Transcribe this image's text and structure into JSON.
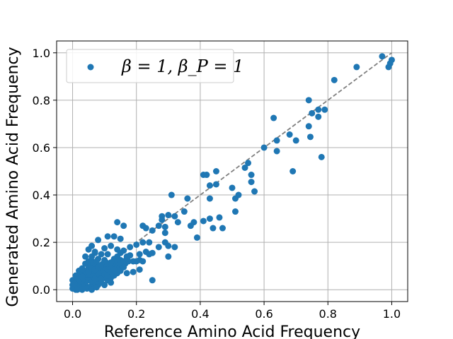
{
  "chart_data": {
    "type": "scatter",
    "title": "",
    "xlabel": "Reference Amino Acid Frequency",
    "ylabel": "Generated Amino Acid Frequency",
    "xlim": [
      -0.05,
      1.05
    ],
    "ylim": [
      -0.05,
      1.05
    ],
    "xticks": [
      "0.0",
      "0.2",
      "0.4",
      "0.6",
      "0.8",
      "1.0"
    ],
    "yticks": [
      "0.0",
      "0.2",
      "0.4",
      "0.6",
      "0.8",
      "1.0"
    ],
    "grid": true,
    "legend": {
      "placement": "upper-left",
      "label": "β = 1, β_P = 1"
    },
    "reference_line": {
      "style": "dashed",
      "color": "#808080",
      "from": [
        0,
        0
      ],
      "to": [
        1,
        1
      ]
    },
    "color": "#1f77b4",
    "series": [
      {
        "name": "β = 1, β_P = 1",
        "points": [
          [
            0.97,
            0.985
          ],
          [
            1.0,
            0.97
          ],
          [
            0.995,
            0.955
          ],
          [
            0.99,
            0.94
          ],
          [
            0.89,
            0.94
          ],
          [
            0.82,
            0.885
          ],
          [
            0.74,
            0.8
          ],
          [
            0.79,
            0.76
          ],
          [
            0.77,
            0.76
          ],
          [
            0.75,
            0.745
          ],
          [
            0.77,
            0.73
          ],
          [
            0.74,
            0.69
          ],
          [
            0.745,
            0.645
          ],
          [
            0.78,
            0.56
          ],
          [
            0.63,
            0.725
          ],
          [
            0.68,
            0.655
          ],
          [
            0.64,
            0.63
          ],
          [
            0.7,
            0.63
          ],
          [
            0.6,
            0.6
          ],
          [
            0.64,
            0.585
          ],
          [
            0.69,
            0.5
          ],
          [
            0.55,
            0.535
          ],
          [
            0.56,
            0.485
          ],
          [
            0.54,
            0.515
          ],
          [
            0.56,
            0.455
          ],
          [
            0.57,
            0.415
          ],
          [
            0.52,
            0.4
          ],
          [
            0.5,
            0.43
          ],
          [
            0.51,
            0.385
          ],
          [
            0.51,
            0.33
          ],
          [
            0.45,
            0.5
          ],
          [
            0.43,
            0.44
          ],
          [
            0.45,
            0.445
          ],
          [
            0.42,
            0.485
          ],
          [
            0.41,
            0.485
          ],
          [
            0.43,
            0.385
          ],
          [
            0.46,
            0.305
          ],
          [
            0.43,
            0.3
          ],
          [
            0.44,
            0.26
          ],
          [
            0.47,
            0.26
          ],
          [
            0.41,
            0.29
          ],
          [
            0.38,
            0.285
          ],
          [
            0.37,
            0.27
          ],
          [
            0.39,
            0.22
          ],
          [
            0.31,
            0.4
          ],
          [
            0.36,
            0.385
          ],
          [
            0.35,
            0.33
          ],
          [
            0.32,
            0.31
          ],
          [
            0.3,
            0.315
          ],
          [
            0.33,
            0.285
          ],
          [
            0.28,
            0.31
          ],
          [
            0.28,
            0.295
          ],
          [
            0.29,
            0.265
          ],
          [
            0.27,
            0.27
          ],
          [
            0.29,
            0.24
          ],
          [
            0.29,
            0.2
          ],
          [
            0.3,
            0.185
          ],
          [
            0.27,
            0.18
          ],
          [
            0.32,
            0.18
          ],
          [
            0.25,
            0.25
          ],
          [
            0.24,
            0.2
          ],
          [
            0.23,
            0.16
          ],
          [
            0.24,
            0.15
          ],
          [
            0.25,
            0.155
          ],
          [
            0.3,
            0.14
          ],
          [
            0.22,
            0.12
          ],
          [
            0.22,
            0.27
          ],
          [
            0.23,
            0.26
          ],
          [
            0.22,
            0.2
          ],
          [
            0.21,
            0.15
          ],
          [
            0.21,
            0.125
          ],
          [
            0.2,
            0.12
          ],
          [
            0.21,
            0.085
          ],
          [
            0.18,
            0.145
          ],
          [
            0.19,
            0.12
          ],
          [
            0.16,
            0.165
          ],
          [
            0.15,
            0.155
          ],
          [
            0.14,
            0.14
          ],
          [
            0.17,
            0.14
          ],
          [
            0.15,
            0.125
          ],
          [
            0.13,
            0.125
          ],
          [
            0.19,
            0.075
          ],
          [
            0.17,
            0.07
          ],
          [
            0.25,
            0.04
          ],
          [
            0.14,
            0.285
          ],
          [
            0.16,
            0.27
          ],
          [
            0.13,
            0.225
          ],
          [
            0.11,
            0.225
          ],
          [
            0.15,
            0.215
          ],
          [
            0.14,
            0.17
          ],
          [
            0.12,
            0.185
          ],
          [
            0.1,
            0.175
          ],
          [
            0.09,
            0.15
          ],
          [
            0.11,
            0.15
          ],
          [
            0.13,
            0.1
          ],
          [
            0.14,
            0.095
          ],
          [
            0.12,
            0.09
          ],
          [
            0.1,
            0.125
          ],
          [
            0.1,
            0.1
          ],
          [
            0.11,
            0.07
          ],
          [
            0.12,
            0.06
          ],
          [
            0.13,
            0.06
          ],
          [
            0.1,
            0.05
          ],
          [
            0.12,
            0.03
          ],
          [
            0.08,
            0.035
          ],
          [
            0.09,
            0.09
          ],
          [
            0.07,
            0.1
          ],
          [
            0.05,
            0.09
          ],
          [
            0.06,
            0.12
          ],
          [
            0.04,
            0.14
          ],
          [
            0.05,
            0.17
          ],
          [
            0.06,
            0.185
          ],
          [
            0.07,
            0.16
          ],
          [
            0.08,
            0.13
          ],
          [
            0.08,
            0.21
          ],
          [
            0.07,
            0.155
          ],
          [
            0.06,
            0.14
          ],
          [
            0.05,
            0.12
          ],
          [
            0.04,
            0.11
          ],
          [
            0.03,
            0.09
          ],
          [
            0.02,
            0.08
          ],
          [
            0.01,
            0.06
          ],
          [
            0.0,
            0.04
          ],
          [
            0.01,
            0.03
          ],
          [
            0.0,
            0.02
          ],
          [
            0.005,
            0.01
          ],
          [
            0.01,
            0.0
          ],
          [
            0.02,
            0.005
          ],
          [
            0.03,
            0.01
          ],
          [
            0.04,
            0.02
          ],
          [
            0.05,
            0.01
          ],
          [
            0.06,
            0.02
          ],
          [
            0.07,
            0.03
          ],
          [
            0.08,
            0.05
          ],
          [
            0.09,
            0.06
          ],
          [
            0.06,
            0.07
          ],
          [
            0.05,
            0.06
          ],
          [
            0.04,
            0.05
          ],
          [
            0.03,
            0.04
          ],
          [
            0.02,
            0.03
          ],
          [
            0.015,
            0.05
          ],
          [
            0.025,
            0.07
          ],
          [
            0.035,
            0.075
          ],
          [
            0.045,
            0.08
          ],
          [
            0.055,
            0.1
          ],
          [
            0.065,
            0.11
          ],
          [
            0.075,
            0.12
          ],
          [
            0.085,
            0.08
          ],
          [
            0.095,
            0.07
          ],
          [
            0.105,
            0.085
          ],
          [
            0.115,
            0.095
          ],
          [
            0.125,
            0.075
          ],
          [
            0.135,
            0.08
          ],
          [
            0.145,
            0.09
          ],
          [
            0.155,
            0.1
          ],
          [
            0.165,
            0.11
          ],
          [
            0.175,
            0.12
          ],
          [
            0.06,
            0.05
          ],
          [
            0.07,
            0.06
          ],
          [
            0.08,
            0.07
          ],
          [
            0.09,
            0.03
          ],
          [
            0.1,
            0.02
          ],
          [
            0.11,
            0.04
          ],
          [
            0.12,
            0.05
          ],
          [
            0.04,
            0.03
          ],
          [
            0.03,
            0.02
          ],
          [
            0.02,
            0.015
          ],
          [
            0.01,
            0.015
          ],
          [
            0.015,
            0.025
          ],
          [
            0.025,
            0.035
          ],
          [
            0.035,
            0.045
          ],
          [
            0.045,
            0.055
          ],
          [
            0.055,
            0.065
          ],
          [
            0.065,
            0.08
          ],
          [
            0.075,
            0.09
          ],
          [
            0.085,
            0.1
          ],
          [
            0.095,
            0.11
          ],
          [
            0.105,
            0.115
          ],
          [
            0.03,
            0.06
          ],
          [
            0.04,
            0.065
          ],
          [
            0.05,
            0.075
          ],
          [
            0.06,
            0.09
          ],
          [
            0.07,
            0.085
          ],
          [
            0.08,
            0.095
          ],
          [
            0.09,
            0.105
          ],
          [
            0.1,
            0.115
          ],
          [
            0.11,
            0.11
          ],
          [
            0.12,
            0.115
          ],
          [
            0.13,
            0.13
          ],
          [
            0.14,
            0.12
          ],
          [
            0.15,
            0.11
          ],
          [
            0.16,
            0.12
          ],
          [
            0.17,
            0.13
          ],
          [
            0.18,
            0.18
          ],
          [
            0.2,
            0.19
          ],
          [
            0.02,
            0.045
          ],
          [
            0.03,
            0.055
          ],
          [
            0.05,
            0.04
          ],
          [
            0.06,
            0.035
          ],
          [
            0.07,
            0.045
          ],
          [
            0.08,
            0.02
          ],
          [
            0.09,
            0.045
          ],
          [
            0.1,
            0.065
          ],
          [
            0.11,
            0.06
          ],
          [
            0.12,
            0.075
          ],
          [
            0.13,
            0.085
          ],
          [
            0.14,
            0.07
          ],
          [
            0.15,
            0.08
          ],
          [
            0.16,
            0.095
          ],
          [
            0.0,
            0.005
          ],
          [
            0.005,
            0.025
          ],
          [
            0.015,
            0.0
          ],
          [
            0.03,
            0.0
          ],
          [
            0.045,
            0.005
          ],
          [
            0.06,
            0.0
          ],
          [
            0.075,
            0.01
          ]
        ]
      }
    ]
  }
}
